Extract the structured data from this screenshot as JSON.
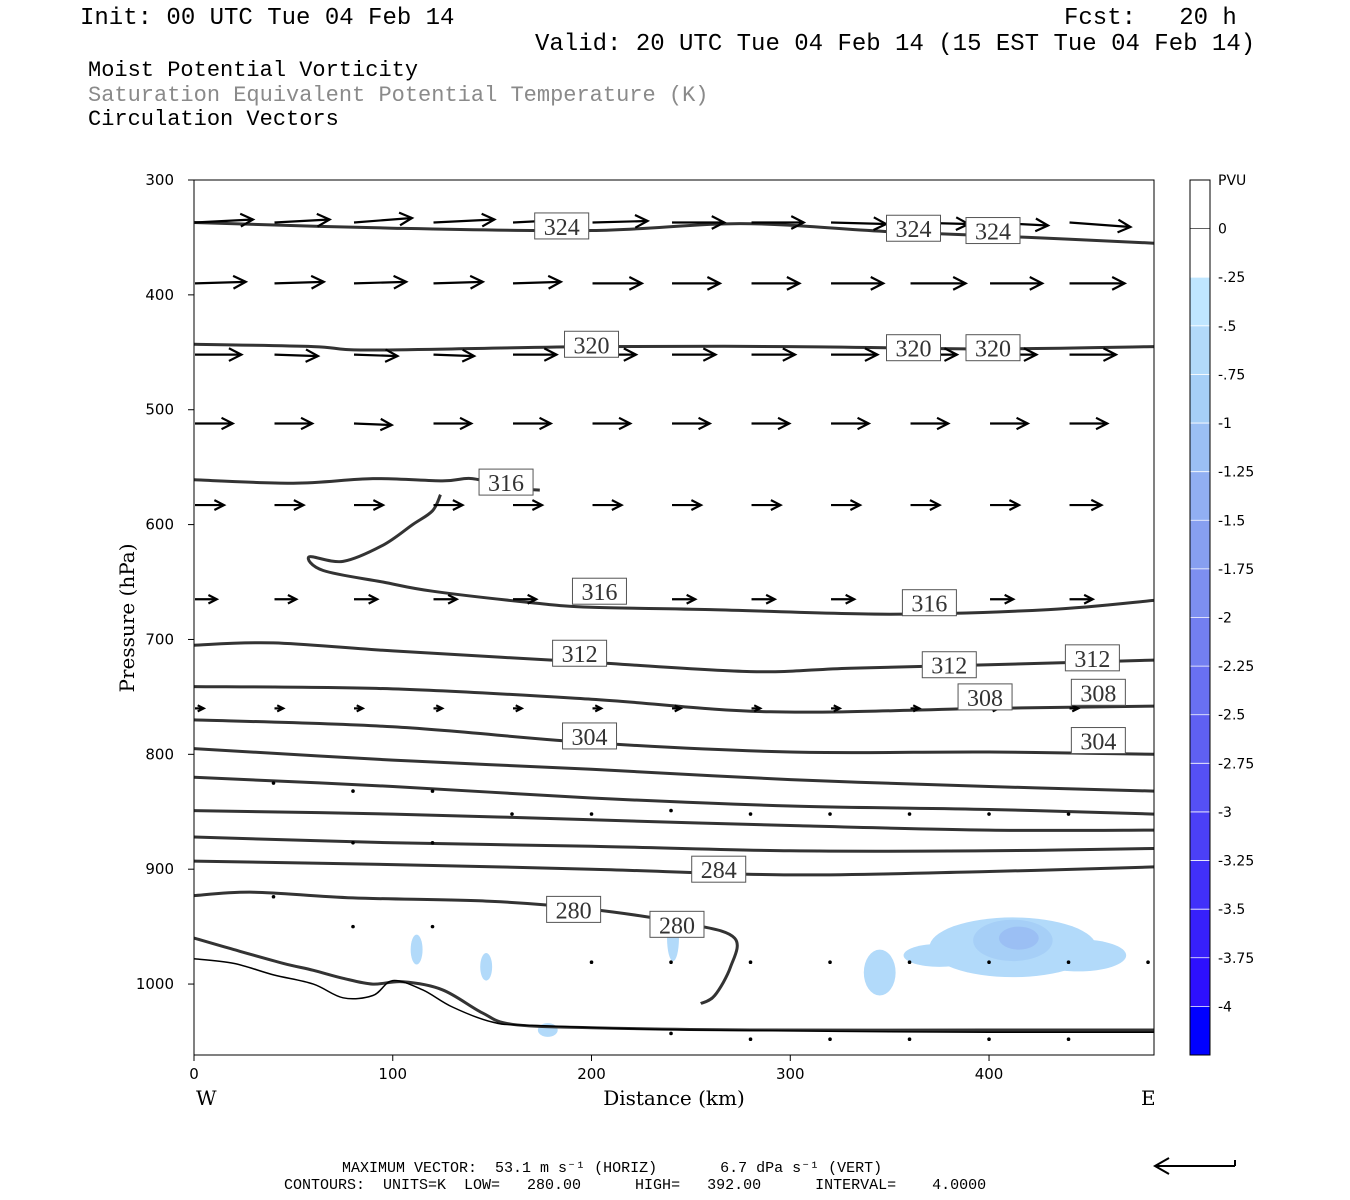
{
  "header": {
    "init": "Init: 00 UTC Tue 04 Feb 14",
    "fcst": "Fcst:   20 h",
    "valid": "Valid: 20 UTC Tue 04 Feb 14 (15 EST Tue 04 Feb 14)",
    "title1": "Moist Potential Vorticity",
    "title2": "Saturation Equivalent Potential Temperature (K)",
    "title3": "Circulation Vectors"
  },
  "footer": {
    "max_vector": "MAXIMUM VECTOR:  53.1 m s⁻¹ (HORIZ)       6.7 dPa s⁻¹ (VERT)",
    "contours": "CONTOURS:  UNITS=K  LOW=   280.00      HIGH=   392.00      INTERVAL=    4.0000"
  },
  "colors": {
    "contour": "#333333",
    "vector": "#000000",
    "pvu_light": "#bfe6ff",
    "pvu_dark": "#0000ff"
  },
  "chart_data": {
    "type": "cross-section",
    "xlabel": "Distance (km)",
    "ylabel": "Pressure (hPa)",
    "xlim": [
      0,
      483
    ],
    "ylim": [
      300,
      1040
    ],
    "x_ticks": [
      "0",
      "100",
      "200",
      "300",
      "400"
    ],
    "x_tick_values": [
      0,
      100,
      200,
      300,
      400
    ],
    "y_ticks": [
      "300",
      "400",
      "500",
      "600",
      "700",
      "800",
      "900",
      "1000"
    ],
    "y_tick_values": [
      300,
      400,
      500,
      600,
      700,
      800,
      900,
      1000
    ],
    "x_ends": [
      "W",
      "E"
    ],
    "colorbar": {
      "title": "PVU",
      "labels": [
        "0",
        "-.25",
        "-.5",
        "-.75",
        "-1",
        "-1.25",
        "-1.5",
        "-1.75",
        "-2",
        "-2.25",
        "-2.5",
        "-2.75",
        "-3",
        "-3.25",
        "-3.5",
        "-3.75",
        "-4"
      ],
      "colors": [
        "#ffffff",
        "#ffffff",
        "#bfe6ff",
        "#b2dafa",
        "#a6cff7",
        "#9bbff4",
        "#91aff2",
        "#879ff0",
        "#7d8ff0",
        "#737ff1",
        "#6970f2",
        "#5f60f3",
        "#5550f5",
        "#4b40f7",
        "#4130f9",
        "#3720fb",
        "#2d10fd",
        "#0000ff"
      ]
    },
    "theta_e_contours": [
      {
        "value": 324,
        "labels": [
          "324",
          "324",
          "324"
        ],
        "points": [
          [
            0,
            337
          ],
          [
            100,
            342
          ],
          [
            200,
            344
          ],
          [
            275,
            338
          ],
          [
            350,
            345
          ],
          [
            420,
            350
          ],
          [
            483,
            355
          ]
        ]
      },
      {
        "value": 320,
        "labels": [
          "320",
          "320",
          "320"
        ],
        "points": [
          [
            0,
            443
          ],
          [
            60,
            445
          ],
          [
            90,
            448
          ],
          [
            200,
            445
          ],
          [
            300,
            445
          ],
          [
            400,
            447
          ],
          [
            483,
            445
          ]
        ]
      },
      {
        "value": 316,
        "labels": [
          "316"
        ],
        "points": [
          [
            0,
            561
          ],
          [
            50,
            564
          ],
          [
            90,
            560
          ],
          [
            125,
            562
          ],
          [
            140,
            560
          ],
          [
            160,
            568
          ],
          [
            174,
            570
          ]
        ]
      },
      {
        "value": 316,
        "labels": [
          "316",
          "316"
        ],
        "points": [
          [
            124,
            574
          ],
          [
            120,
            588
          ],
          [
            110,
            600
          ],
          [
            95,
            618
          ],
          [
            75,
            632
          ],
          [
            58,
            628
          ],
          [
            65,
            640
          ],
          [
            95,
            650
          ],
          [
            120,
            658
          ],
          [
            170,
            668
          ],
          [
            200,
            672
          ],
          [
            260,
            674
          ],
          [
            350,
            678
          ],
          [
            430,
            674
          ],
          [
            483,
            666
          ]
        ]
      },
      {
        "value": 312,
        "labels": [
          "312",
          "312",
          "312"
        ],
        "points": [
          [
            0,
            705
          ],
          [
            40,
            703
          ],
          [
            100,
            710
          ],
          [
            200,
            720
          ],
          [
            280,
            728
          ],
          [
            330,
            725
          ],
          [
            400,
            722
          ],
          [
            483,
            718
          ]
        ]
      },
      {
        "value": 308,
        "labels": [
          "308",
          "308"
        ],
        "points": [
          [
            0,
            741
          ],
          [
            100,
            743
          ],
          [
            200,
            752
          ],
          [
            290,
            763
          ],
          [
            400,
            760
          ],
          [
            483,
            758
          ]
        ]
      },
      {
        "value": 304,
        "labels": [
          "304",
          "304"
        ],
        "points": [
          [
            0,
            770
          ],
          [
            100,
            776
          ],
          [
            200,
            790
          ],
          [
            300,
            798
          ],
          [
            400,
            798
          ],
          [
            483,
            800
          ]
        ]
      },
      {
        "value": 300,
        "labels": [],
        "points": [
          [
            0,
            795
          ],
          [
            100,
            805
          ],
          [
            200,
            813
          ],
          [
            300,
            822
          ],
          [
            400,
            828
          ],
          [
            483,
            832
          ]
        ]
      },
      {
        "value": 296,
        "labels": [],
        "points": [
          [
            0,
            820
          ],
          [
            100,
            828
          ],
          [
            200,
            838
          ],
          [
            300,
            845
          ],
          [
            400,
            848
          ],
          [
            483,
            852
          ]
        ]
      },
      {
        "value": 292,
        "labels": [],
        "points": [
          [
            0,
            849
          ],
          [
            100,
            852
          ],
          [
            200,
            857
          ],
          [
            300,
            862
          ],
          [
            400,
            866
          ],
          [
            483,
            866
          ]
        ]
      },
      {
        "value": 288,
        "labels": [],
        "points": [
          [
            0,
            872
          ],
          [
            100,
            877
          ],
          [
            200,
            880
          ],
          [
            300,
            884
          ],
          [
            400,
            884
          ],
          [
            483,
            882
          ]
        ]
      },
      {
        "value": 284,
        "labels": [
          "284"
        ],
        "points": [
          [
            0,
            893
          ],
          [
            100,
            896
          ],
          [
            200,
            900
          ],
          [
            300,
            905
          ],
          [
            400,
            902
          ],
          [
            483,
            898
          ]
        ]
      },
      {
        "value": 280,
        "labels": [
          "280",
          "280"
        ],
        "points": [
          [
            0,
            923
          ],
          [
            30,
            920
          ],
          [
            80,
            925
          ],
          [
            150,
            928
          ],
          [
            200,
            935
          ],
          [
            250,
            948
          ],
          [
            272,
            960
          ],
          [
            270,
            985
          ],
          [
            262,
            1010
          ],
          [
            255,
            1017
          ]
        ]
      }
    ],
    "terrain_contours": [
      {
        "points": [
          [
            0,
            960
          ],
          [
            20,
            970
          ],
          [
            45,
            982
          ],
          [
            60,
            988
          ],
          [
            75,
            995
          ],
          [
            90,
            1000
          ],
          [
            105,
            998
          ],
          [
            125,
            1005
          ],
          [
            145,
            1025
          ],
          [
            160,
            1035
          ],
          [
            200,
            1038
          ],
          [
            280,
            1040
          ],
          [
            400,
            1040
          ],
          [
            483,
            1040
          ]
        ]
      },
      {
        "points": [
          [
            0,
            978
          ],
          [
            20,
            982
          ],
          [
            40,
            992
          ],
          [
            60,
            1000
          ],
          [
            75,
            1012
          ],
          [
            90,
            1010
          ],
          [
            100,
            997
          ],
          [
            115,
            1005
          ],
          [
            130,
            1020
          ],
          [
            150,
            1033
          ],
          [
            170,
            1036
          ],
          [
            250,
            1040
          ],
          [
            400,
            1042
          ],
          [
            483,
            1042
          ]
        ]
      }
    ],
    "vectors_hPa_rows": [
      {
        "p": 337,
        "xs": [
          0,
          40,
          80,
          120,
          160,
          200,
          240,
          280,
          320,
          360,
          400,
          440
        ],
        "u": [
          40,
          38,
          40,
          42,
          40,
          38,
          36,
          36,
          38,
          40,
          40,
          42
        ],
        "w": [
          -2,
          -2,
          -3,
          -2,
          -2,
          -1,
          0,
          0,
          1,
          1,
          2,
          3
        ]
      },
      {
        "p": 390,
        "xs": [
          0,
          40,
          80,
          120,
          160,
          200,
          240,
          280,
          320,
          360,
          400,
          440
        ],
        "u": [
          35,
          34,
          36,
          34,
          33,
          34,
          33,
          33,
          36,
          38,
          36,
          38
        ],
        "w": [
          -1,
          -1,
          -1,
          -1,
          -1,
          0,
          0,
          0,
          0,
          0,
          0,
          0
        ]
      },
      {
        "p": 452,
        "xs": [
          0,
          40,
          80,
          120,
          160,
          200,
          240,
          280,
          320,
          360,
          400,
          440
        ],
        "u": [
          32,
          30,
          30,
          28,
          30,
          30,
          30,
          30,
          32,
          32,
          32,
          32
        ],
        "w": [
          0,
          1,
          1,
          1,
          0,
          0,
          0,
          0,
          0,
          0,
          0,
          0
        ]
      },
      {
        "p": 512,
        "xs": [
          0,
          40,
          80,
          120,
          160,
          200,
          240,
          280,
          320,
          360,
          400,
          440
        ],
        "u": [
          26,
          26,
          26,
          26,
          26,
          26,
          26,
          26,
          26,
          26,
          26,
          26
        ],
        "w": [
          0,
          0,
          1,
          0,
          0,
          0,
          0,
          0,
          0,
          0,
          0,
          0
        ]
      },
      {
        "p": 583,
        "xs": [
          0,
          40,
          80,
          120,
          160,
          200,
          240,
          280,
          320,
          360,
          400,
          440
        ],
        "u": [
          20,
          20,
          20,
          20,
          20,
          20,
          20,
          20,
          20,
          20,
          20,
          22
        ],
        "w": [
          0,
          0,
          0,
          0,
          0,
          0,
          0,
          0,
          0,
          0,
          0,
          0
        ]
      },
      {
        "p": 665,
        "xs": [
          0,
          40,
          80,
          120,
          160,
          200,
          240,
          280,
          320,
          360,
          400,
          440
        ],
        "u": [
          15,
          15,
          16,
          16,
          16,
          16,
          16,
          16,
          16,
          16,
          16,
          16
        ],
        "w": [
          0,
          0,
          0,
          0,
          0,
          0,
          0,
          0,
          0,
          0,
          0,
          0
        ]
      },
      {
        "p": 760,
        "xs": [
          0,
          40,
          80,
          120,
          160,
          200,
          240,
          280,
          320,
          360,
          400,
          440
        ],
        "u": [
          6,
          6,
          6,
          6,
          6,
          6,
          6,
          6,
          6,
          6,
          6,
          6
        ],
        "w": [
          0,
          0,
          0,
          0,
          0,
          0,
          0,
          0,
          0,
          0,
          0,
          0
        ]
      }
    ],
    "dots": [
      [
        40,
        825
      ],
      [
        80,
        832
      ],
      [
        120,
        832
      ],
      [
        160,
        852
      ],
      [
        200,
        852
      ],
      [
        240,
        849
      ],
      [
        280,
        852
      ],
      [
        320,
        852
      ],
      [
        360,
        852
      ],
      [
        400,
        852
      ],
      [
        440,
        852
      ],
      [
        80,
        877
      ],
      [
        120,
        877
      ],
      [
        40,
        924
      ],
      [
        80,
        950
      ],
      [
        120,
        950
      ],
      [
        200,
        981
      ],
      [
        240,
        981
      ],
      [
        280,
        981
      ],
      [
        320,
        981
      ],
      [
        360,
        981
      ],
      [
        400,
        981
      ],
      [
        440,
        981
      ],
      [
        480,
        981
      ],
      [
        240,
        1043
      ],
      [
        280,
        1048
      ],
      [
        320,
        1048
      ],
      [
        360,
        1048
      ],
      [
        400,
        1048
      ],
      [
        440,
        1048
      ]
    ],
    "pv_shading": [
      {
        "level": "-.5",
        "center": [
          412,
          968
        ],
        "rx": 42,
        "ry": 26
      },
      {
        "level": "-.5",
        "center": [
          445,
          975
        ],
        "rx": 24,
        "ry": 14
      },
      {
        "level": "-.5",
        "center": [
          345,
          990
        ],
        "rx": 8,
        "ry": 20
      },
      {
        "level": "-.5",
        "center": [
          375,
          975
        ],
        "rx": 18,
        "ry": 10
      },
      {
        "level": "-.75",
        "center": [
          412,
          962
        ],
        "rx": 20,
        "ry": 18
      },
      {
        "level": "-1",
        "center": [
          415,
          960
        ],
        "rx": 10,
        "ry": 10
      },
      {
        "level": "-.5",
        "center": [
          112,
          970
        ],
        "rx": 3,
        "ry": 13
      },
      {
        "level": "-.5",
        "center": [
          147,
          985
        ],
        "rx": 3,
        "ry": 12
      },
      {
        "level": "-.5",
        "center": [
          241,
          960
        ],
        "rx": 3,
        "ry": 20
      },
      {
        "level": "-.5",
        "center": [
          178,
          1040
        ],
        "rx": 5,
        "ry": 6
      }
    ]
  }
}
